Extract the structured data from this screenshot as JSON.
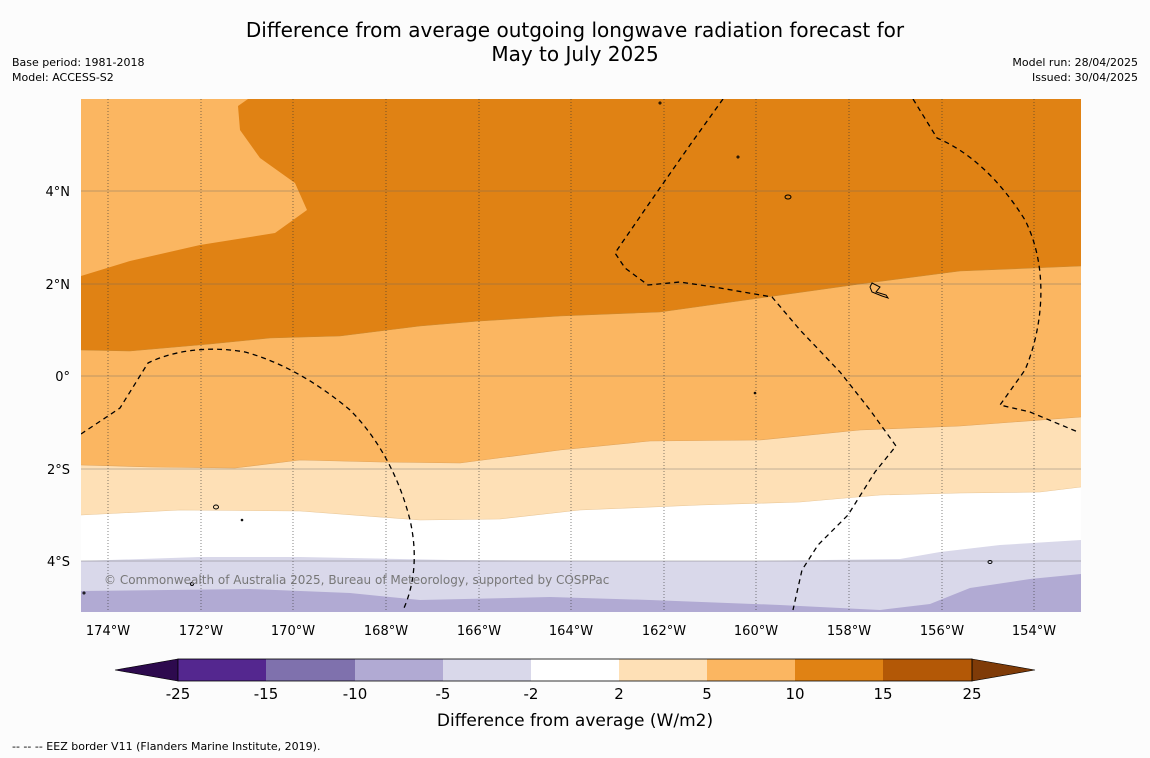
{
  "title_line1": "Difference from average outgoing longwave radiation forecast for",
  "title_line2": "May to July 2025",
  "base_period": "Base period: 1981-2018",
  "model": "Model: ACCESS-S2",
  "model_run": "Model run: 28/04/2025",
  "issued": "Issued: 30/04/2025",
  "copyright": "© Commonwealth of Australia 2025, Bureau of Meteorology, supported by COSPPac",
  "colorbar_label": "Difference from average (W/m2)",
  "footnote": "--  --  -- EEZ border V11 (Flanders Marine Institute, 2019).",
  "map": {
    "lon_ticks": [
      "174°W",
      "172°W",
      "170°W",
      "168°W",
      "166°W",
      "164°W",
      "162°W",
      "160°W",
      "158°W",
      "156°W",
      "154°W"
    ],
    "lat_ticks": [
      "4°N",
      "2°N",
      "0°",
      "2°S",
      "4°S"
    ]
  },
  "colorbar": {
    "ticks": [
      "-25",
      "-15",
      "-10",
      "-5",
      "-2",
      "2",
      "5",
      "10",
      "15",
      "25"
    ],
    "colors": {
      "under": "#2d0a4e",
      "bin_-25_-15": "#54278f",
      "bin_-15_-10": "#7f71ad",
      "bin_-10_-5": "#b1aad3",
      "bin_-5_-2": "#d9d8ea",
      "bin_-2_2": "#ffffff",
      "bin_2_5": "#fee0b6",
      "bin_5_10": "#fbb661",
      "bin_10_15": "#e08214",
      "bin_15_25": "#b35806",
      "over": "#7f3b08"
    }
  }
}
